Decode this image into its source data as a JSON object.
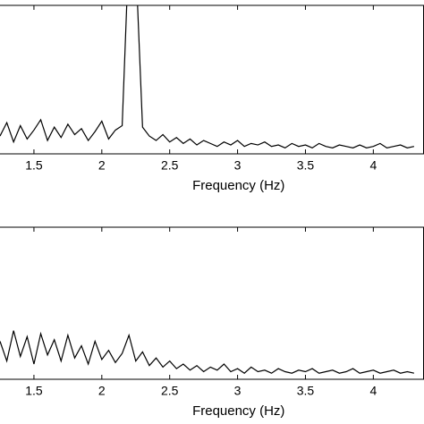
{
  "chart_data": [
    {
      "type": "line",
      "xlabel": "Frequency (Hz)",
      "x": [
        1.25,
        1.3,
        1.35,
        1.4,
        1.45,
        1.5,
        1.55,
        1.6,
        1.65,
        1.7,
        1.75,
        1.8,
        1.85,
        1.9,
        1.95,
        2.0,
        2.05,
        2.1,
        2.15,
        2.2,
        2.25,
        2.3,
        2.35,
        2.4,
        2.45,
        2.5,
        2.55,
        2.6,
        2.65,
        2.7,
        2.75,
        2.8,
        2.85,
        2.9,
        2.95,
        3.0,
        3.05,
        3.1,
        3.15,
        3.2,
        3.25,
        3.3,
        3.35,
        3.4,
        3.45,
        3.5,
        3.55,
        3.6,
        3.65,
        3.7,
        3.75,
        3.8,
        3.85,
        3.9,
        3.95,
        4.0,
        4.05,
        4.1,
        4.15,
        4.2,
        4.25,
        4.3
      ],
      "series": [
        {
          "color": "#000000",
          "values": [
            1.2,
            2.1,
            0.8,
            1.9,
            1.0,
            1.6,
            2.3,
            0.9,
            1.8,
            1.1,
            2.0,
            1.3,
            1.7,
            0.9,
            1.5,
            2.2,
            1.0,
            1.6,
            1.9,
            14,
            13,
            1.8,
            1.2,
            0.9,
            1.3,
            0.8,
            1.1,
            0.7,
            1.0,
            0.6,
            0.9,
            0.7,
            0.5,
            0.8,
            0.6,
            0.9,
            0.5,
            0.7,
            0.6,
            0.8,
            0.5,
            0.6,
            0.4,
            0.7,
            0.5,
            0.6,
            0.4,
            0.7,
            0.5,
            0.4,
            0.6,
            0.5,
            0.4,
            0.6,
            0.4,
            0.5,
            0.7,
            0.4,
            0.5,
            0.6,
            0.4,
            0.5
          ]
        }
      ],
      "xlim": [
        1.25,
        4.37
      ],
      "xticks": [
        1.5,
        2,
        2.5,
        3,
        3.5,
        4
      ],
      "ylim": [
        0,
        10
      ]
    },
    {
      "type": "line",
      "xlabel": "Frequency (Hz)",
      "x": [
        1.25,
        1.3,
        1.35,
        1.4,
        1.45,
        1.5,
        1.55,
        1.6,
        1.65,
        1.7,
        1.75,
        1.8,
        1.85,
        1.9,
        1.95,
        2.0,
        2.05,
        2.1,
        2.15,
        2.2,
        2.25,
        2.3,
        2.35,
        2.4,
        2.45,
        2.5,
        2.55,
        2.6,
        2.65,
        2.7,
        2.75,
        2.8,
        2.85,
        2.9,
        2.95,
        3.0,
        3.05,
        3.1,
        3.15,
        3.2,
        3.25,
        3.3,
        3.35,
        3.4,
        3.45,
        3.5,
        3.55,
        3.6,
        3.65,
        3.7,
        3.75,
        3.8,
        3.85,
        3.9,
        3.95,
        4.0,
        4.05,
        4.1,
        4.15,
        4.2,
        4.25,
        4.3
      ],
      "series": [
        {
          "color": "#000000",
          "values": [
            2.5,
            1.2,
            3.2,
            1.5,
            2.8,
            1.0,
            3.0,
            1.6,
            2.6,
            1.2,
            2.9,
            1.4,
            2.2,
            1.0,
            2.5,
            1.3,
            1.9,
            1.1,
            1.7,
            2.9,
            1.2,
            1.8,
            0.9,
            1.4,
            0.8,
            1.2,
            0.7,
            1.0,
            0.6,
            0.9,
            0.5,
            0.8,
            0.6,
            1.0,
            0.5,
            0.7,
            0.4,
            0.8,
            0.5,
            0.6,
            0.4,
            0.7,
            0.5,
            0.4,
            0.6,
            0.5,
            0.7,
            0.4,
            0.5,
            0.6,
            0.4,
            0.5,
            0.7,
            0.4,
            0.5,
            0.6,
            0.4,
            0.5,
            0.6,
            0.4,
            0.5,
            0.4
          ]
        }
      ],
      "xlim": [
        1.25,
        4.37
      ],
      "xticks": [
        1.5,
        2,
        2.5,
        3,
        3.5,
        4
      ],
      "ylim": [
        0,
        10
      ]
    }
  ]
}
